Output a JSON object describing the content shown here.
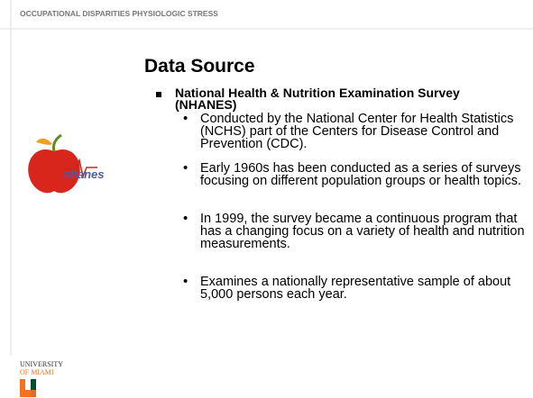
{
  "header": {
    "title": "OCCUPATIONAL DISPARITIES PHYSIOLOGIC STRESS"
  },
  "slide": {
    "title": "Data Source",
    "bullets": [
      {
        "text": "National Health & Nutrition Examination Survey (NHANES)",
        "subbullets": [
          "Conducted by the National Center for Health Statistics (NCHS) part of the Centers for Disease Control and Prevention (CDC).",
          "Early 1960s has been conducted as a series of surveys focusing on different population groups or health topics.",
          "In 1999, the survey became a continuous program that has a changing focus on a variety of health and nutrition measurements.",
          "Examines a nationally representative sample of about 5,000 persons each year."
        ]
      }
    ]
  },
  "logo": {
    "text": "nhanes"
  },
  "university": {
    "line1": "UNIVERSITY",
    "line2": "OF MIAMI"
  }
}
